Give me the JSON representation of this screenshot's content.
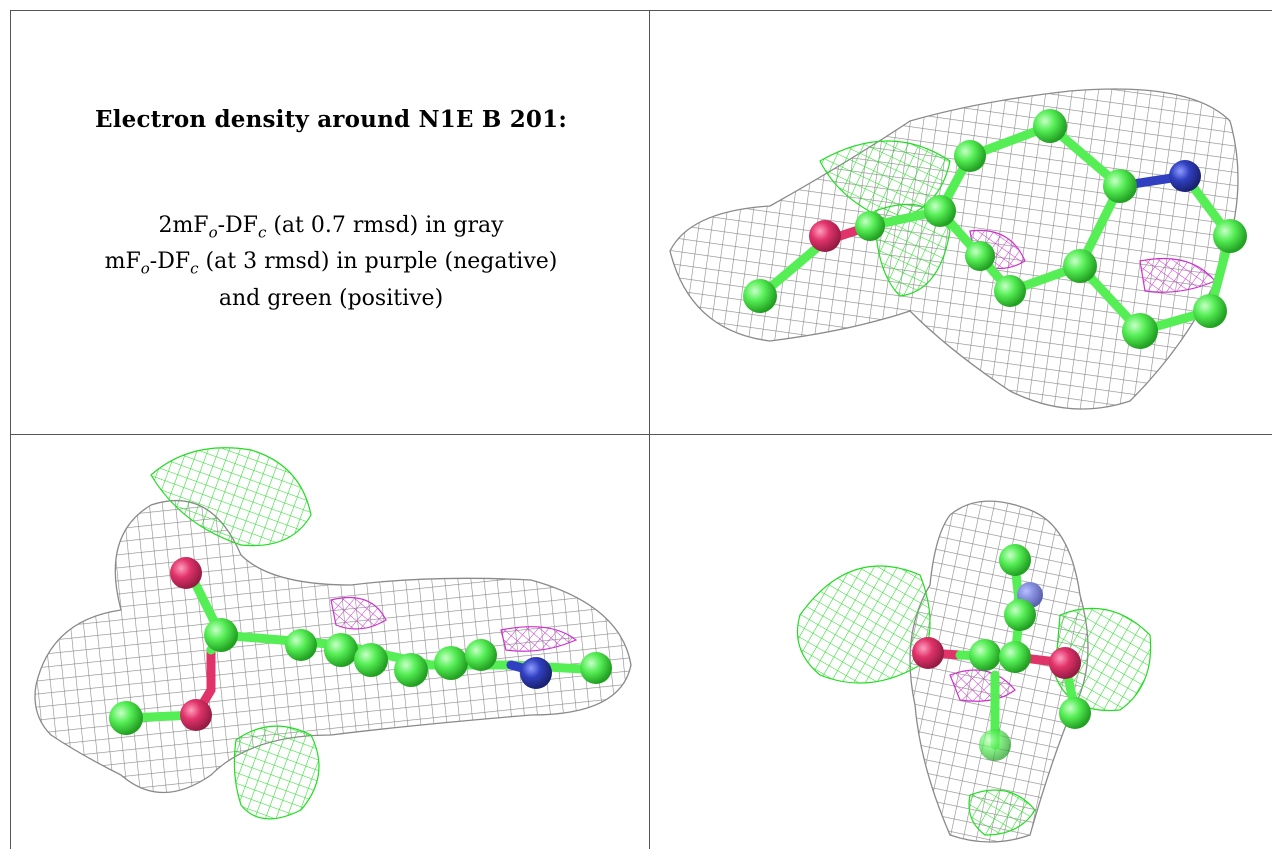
{
  "panel_text": {
    "title": "Electron density around N1E B 201:",
    "line1": {
      "pre": "2mF",
      "sub1": "o",
      "mid": "-DF",
      "sub2": "c",
      "post": " (at 0.7 rmsd) in gray"
    },
    "line2": {
      "pre": "mF",
      "sub1": "o",
      "mid": "-DF",
      "sub2": "c",
      "post": " (at 3 rmsd) in purple (negative)"
    },
    "line3": "and green (positive)"
  },
  "colors": {
    "map_2fofc": "#8a8a8a",
    "map_positive": "#22dd22",
    "map_negative": "#cc33cc",
    "carbon": "#55ee55",
    "oxygen": "#e0336a",
    "nitrogen": "#3040c0",
    "grid_line": "#555555"
  }
}
